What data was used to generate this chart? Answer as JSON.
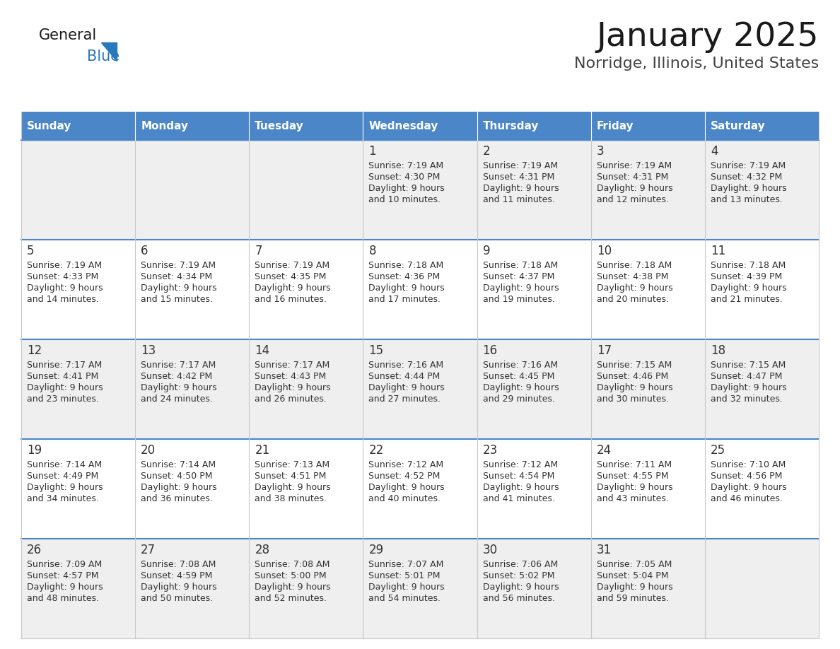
{
  "title": "January 2025",
  "subtitle": "Norridge, Illinois, United States",
  "days_of_week": [
    "Sunday",
    "Monday",
    "Tuesday",
    "Wednesday",
    "Thursday",
    "Friday",
    "Saturday"
  ],
  "header_bg": "#4A86C8",
  "header_text": "#FFFFFF",
  "row_bg_odd": "#EFEFEF",
  "row_bg_even": "#FFFFFF",
  "cell_border": "#C8C8C8",
  "row_separator": "#4A86C8",
  "day_num_color": "#333333",
  "info_text_color": "#333333",
  "title_color": "#1a1a1a",
  "subtitle_color": "#444444",
  "logo_general_color": "#1a1a1a",
  "logo_blue_color": "#2878BE",
  "calendar_data": [
    [
      {
        "day": null,
        "sunrise": null,
        "sunset": null,
        "daylight": null
      },
      {
        "day": null,
        "sunrise": null,
        "sunset": null,
        "daylight": null
      },
      {
        "day": null,
        "sunrise": null,
        "sunset": null,
        "daylight": null
      },
      {
        "day": 1,
        "sunrise": "7:19 AM",
        "sunset": "4:30 PM",
        "daylight": "9 hours\nand 10 minutes."
      },
      {
        "day": 2,
        "sunrise": "7:19 AM",
        "sunset": "4:31 PM",
        "daylight": "9 hours\nand 11 minutes."
      },
      {
        "day": 3,
        "sunrise": "7:19 AM",
        "sunset": "4:31 PM",
        "daylight": "9 hours\nand 12 minutes."
      },
      {
        "day": 4,
        "sunrise": "7:19 AM",
        "sunset": "4:32 PM",
        "daylight": "9 hours\nand 13 minutes."
      }
    ],
    [
      {
        "day": 5,
        "sunrise": "7:19 AM",
        "sunset": "4:33 PM",
        "daylight": "9 hours\nand 14 minutes."
      },
      {
        "day": 6,
        "sunrise": "7:19 AM",
        "sunset": "4:34 PM",
        "daylight": "9 hours\nand 15 minutes."
      },
      {
        "day": 7,
        "sunrise": "7:19 AM",
        "sunset": "4:35 PM",
        "daylight": "9 hours\nand 16 minutes."
      },
      {
        "day": 8,
        "sunrise": "7:18 AM",
        "sunset": "4:36 PM",
        "daylight": "9 hours\nand 17 minutes."
      },
      {
        "day": 9,
        "sunrise": "7:18 AM",
        "sunset": "4:37 PM",
        "daylight": "9 hours\nand 19 minutes."
      },
      {
        "day": 10,
        "sunrise": "7:18 AM",
        "sunset": "4:38 PM",
        "daylight": "9 hours\nand 20 minutes."
      },
      {
        "day": 11,
        "sunrise": "7:18 AM",
        "sunset": "4:39 PM",
        "daylight": "9 hours\nand 21 minutes."
      }
    ],
    [
      {
        "day": 12,
        "sunrise": "7:17 AM",
        "sunset": "4:41 PM",
        "daylight": "9 hours\nand 23 minutes."
      },
      {
        "day": 13,
        "sunrise": "7:17 AM",
        "sunset": "4:42 PM",
        "daylight": "9 hours\nand 24 minutes."
      },
      {
        "day": 14,
        "sunrise": "7:17 AM",
        "sunset": "4:43 PM",
        "daylight": "9 hours\nand 26 minutes."
      },
      {
        "day": 15,
        "sunrise": "7:16 AM",
        "sunset": "4:44 PM",
        "daylight": "9 hours\nand 27 minutes."
      },
      {
        "day": 16,
        "sunrise": "7:16 AM",
        "sunset": "4:45 PM",
        "daylight": "9 hours\nand 29 minutes."
      },
      {
        "day": 17,
        "sunrise": "7:15 AM",
        "sunset": "4:46 PM",
        "daylight": "9 hours\nand 30 minutes."
      },
      {
        "day": 18,
        "sunrise": "7:15 AM",
        "sunset": "4:47 PM",
        "daylight": "9 hours\nand 32 minutes."
      }
    ],
    [
      {
        "day": 19,
        "sunrise": "7:14 AM",
        "sunset": "4:49 PM",
        "daylight": "9 hours\nand 34 minutes."
      },
      {
        "day": 20,
        "sunrise": "7:14 AM",
        "sunset": "4:50 PM",
        "daylight": "9 hours\nand 36 minutes."
      },
      {
        "day": 21,
        "sunrise": "7:13 AM",
        "sunset": "4:51 PM",
        "daylight": "9 hours\nand 38 minutes."
      },
      {
        "day": 22,
        "sunrise": "7:12 AM",
        "sunset": "4:52 PM",
        "daylight": "9 hours\nand 40 minutes."
      },
      {
        "day": 23,
        "sunrise": "7:12 AM",
        "sunset": "4:54 PM",
        "daylight": "9 hours\nand 41 minutes."
      },
      {
        "day": 24,
        "sunrise": "7:11 AM",
        "sunset": "4:55 PM",
        "daylight": "9 hours\nand 43 minutes."
      },
      {
        "day": 25,
        "sunrise": "7:10 AM",
        "sunset": "4:56 PM",
        "daylight": "9 hours\nand 46 minutes."
      }
    ],
    [
      {
        "day": 26,
        "sunrise": "7:09 AM",
        "sunset": "4:57 PM",
        "daylight": "9 hours\nand 48 minutes."
      },
      {
        "day": 27,
        "sunrise": "7:08 AM",
        "sunset": "4:59 PM",
        "daylight": "9 hours\nand 50 minutes."
      },
      {
        "day": 28,
        "sunrise": "7:08 AM",
        "sunset": "5:00 PM",
        "daylight": "9 hours\nand 52 minutes."
      },
      {
        "day": 29,
        "sunrise": "7:07 AM",
        "sunset": "5:01 PM",
        "daylight": "9 hours\nand 54 minutes."
      },
      {
        "day": 30,
        "sunrise": "7:06 AM",
        "sunset": "5:02 PM",
        "daylight": "9 hours\nand 56 minutes."
      },
      {
        "day": 31,
        "sunrise": "7:05 AM",
        "sunset": "5:04 PM",
        "daylight": "9 hours\nand 59 minutes."
      },
      {
        "day": null,
        "sunrise": null,
        "sunset": null,
        "daylight": null
      }
    ]
  ]
}
